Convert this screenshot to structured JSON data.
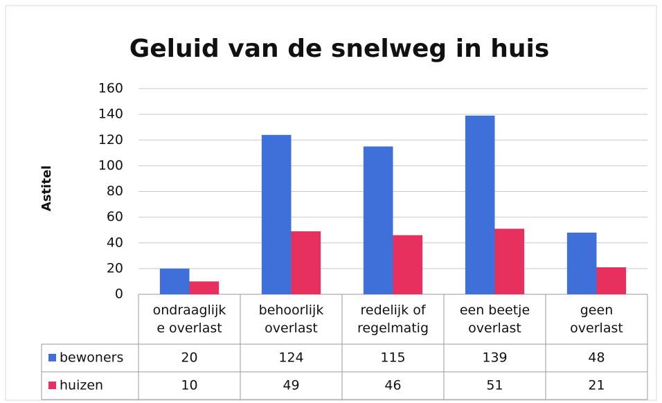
{
  "chart_data": {
    "type": "bar",
    "title": "Geluid van de snelweg in huis",
    "y_label": "Astitel",
    "categories": [
      "ondraaglijk\ne overlast",
      "behoorlijk\noverlast",
      "redelijk of\nregelmatig",
      "een beetje\noverlast",
      "geen\noverlast"
    ],
    "series": [
      {
        "name": "bewoners",
        "color": "#3f6fd8",
        "values": [
          20,
          124,
          115,
          139,
          48
        ]
      },
      {
        "name": "huizen",
        "color": "#e8305e",
        "values": [
          10,
          49,
          46,
          51,
          21
        ]
      }
    ],
    "ylim": [
      0,
      160
    ],
    "yticks": [
      0,
      20,
      40,
      60,
      80,
      100,
      120,
      140,
      160
    ],
    "grid": true
  }
}
